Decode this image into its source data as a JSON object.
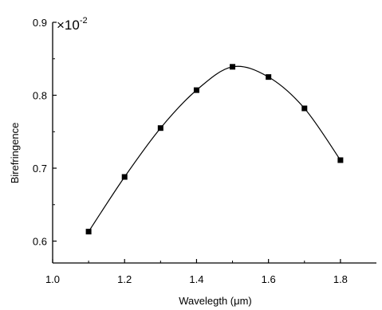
{
  "chart_data": {
    "type": "scatter",
    "title": "",
    "xlabel": "Wavelegth (μm)",
    "ylabel": "Birefringence",
    "scale_label": {
      "base": "×10",
      "exponent": "-2"
    },
    "xlim": [
      1.0,
      1.9
    ],
    "ylim": [
      0.57,
      0.9
    ],
    "xticks": [
      1.0,
      1.2,
      1.4,
      1.6,
      1.8
    ],
    "xtick_labels": [
      "1.0",
      "1.2",
      "1.4",
      "1.6",
      "1.8"
    ],
    "yticks": [
      0.6,
      0.7,
      0.8,
      0.9
    ],
    "ytick_labels": [
      "0.6",
      "0.7",
      "0.8",
      "0.9"
    ],
    "grid": false,
    "legend": "none",
    "series": [
      {
        "x": [
          1.1,
          1.2,
          1.3,
          1.4,
          1.5,
          1.6,
          1.7,
          1.8
        ],
        "y": [
          0.613,
          0.688,
          0.755,
          0.807,
          0.839,
          0.825,
          0.782,
          0.711
        ],
        "marker": "square",
        "line": "smooth",
        "color": "#000000"
      }
    ]
  }
}
